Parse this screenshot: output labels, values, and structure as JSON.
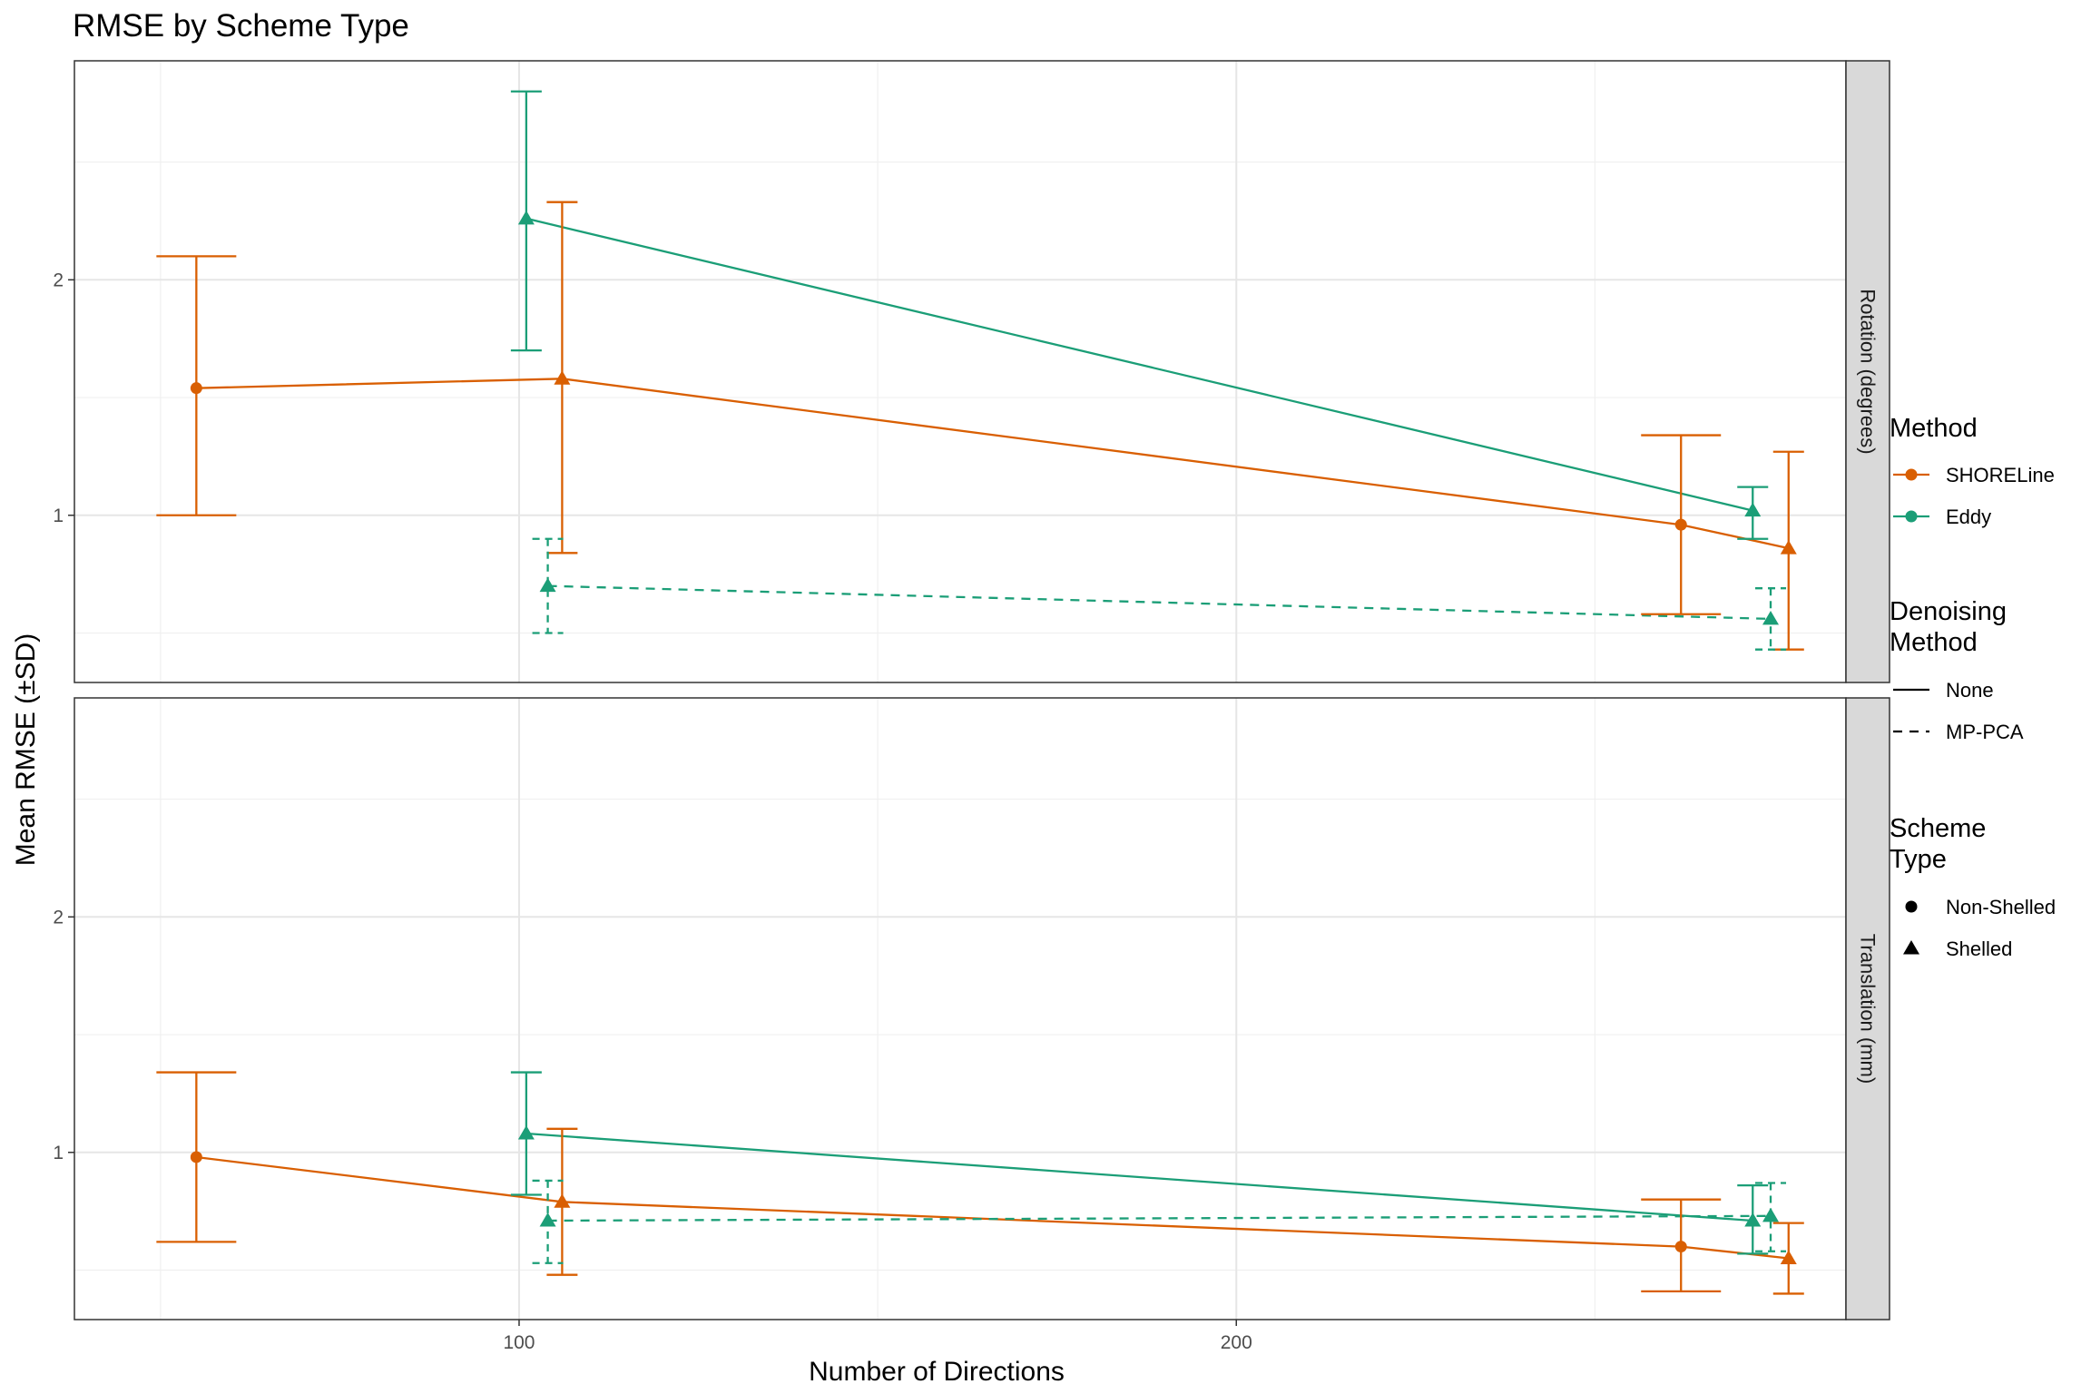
{
  "title": "RMSE by Scheme Type",
  "colors": {
    "SHORELine": "#D95F02",
    "Eddy": "#1B9E77"
  },
  "chart_data": {
    "type": "line",
    "title": "RMSE by Scheme Type",
    "xlabel": "Number of Directions",
    "ylabel": "Mean RMSE (±SD)",
    "x_ticks": [
      100,
      200
    ],
    "y_ticks": [
      1,
      2
    ],
    "xlim": [
      38,
      285
    ],
    "ylim": [
      0.29,
      2.93
    ],
    "grid": true,
    "legend_position": "right",
    "facets": [
      {
        "label": "Rotation (degrees)",
        "points": [
          {
            "method": "SHORELine",
            "denoising": "None",
            "scheme": "Non-Shelled",
            "x": 55,
            "mean": 1.54,
            "lo": 1.0,
            "hi": 2.1
          },
          {
            "method": "SHORELine",
            "denoising": "None",
            "scheme": "Shelled",
            "x": 106,
            "mean": 1.58,
            "lo": 0.84,
            "hi": 2.33
          },
          {
            "method": "SHORELine",
            "denoising": "None",
            "scheme": "Non-Shelled",
            "x": 262,
            "mean": 0.96,
            "lo": 0.58,
            "hi": 1.34
          },
          {
            "method": "SHORELine",
            "denoising": "None",
            "scheme": "Shelled",
            "x": 277,
            "mean": 0.86,
            "lo": 0.43,
            "hi": 1.27
          },
          {
            "method": "Eddy",
            "denoising": "None",
            "scheme": "Shelled",
            "x": 101,
            "mean": 2.26,
            "lo": 1.7,
            "hi": 2.8
          },
          {
            "method": "Eddy",
            "denoising": "None",
            "scheme": "Shelled",
            "x": 272,
            "mean": 1.02,
            "lo": 0.9,
            "hi": 1.12
          },
          {
            "method": "Eddy",
            "denoising": "MP-PCA",
            "scheme": "Shelled",
            "x": 104,
            "mean": 0.7,
            "lo": 0.5,
            "hi": 0.9
          },
          {
            "method": "Eddy",
            "denoising": "MP-PCA",
            "scheme": "Shelled",
            "x": 274.5,
            "mean": 0.56,
            "lo": 0.43,
            "hi": 0.69
          }
        ]
      },
      {
        "label": "Translation (mm)",
        "points": [
          {
            "method": "SHORELine",
            "denoising": "None",
            "scheme": "Non-Shelled",
            "x": 55,
            "mean": 0.98,
            "lo": 0.62,
            "hi": 1.34
          },
          {
            "method": "SHORELine",
            "denoising": "None",
            "scheme": "Shelled",
            "x": 106,
            "mean": 0.79,
            "lo": 0.48,
            "hi": 1.1
          },
          {
            "method": "SHORELine",
            "denoising": "None",
            "scheme": "Non-Shelled",
            "x": 262,
            "mean": 0.6,
            "lo": 0.41,
            "hi": 0.8
          },
          {
            "method": "SHORELine",
            "denoising": "None",
            "scheme": "Shelled",
            "x": 277,
            "mean": 0.55,
            "lo": 0.4,
            "hi": 0.7
          },
          {
            "method": "Eddy",
            "denoising": "None",
            "scheme": "Shelled",
            "x": 101,
            "mean": 1.08,
            "lo": 0.82,
            "hi": 1.34
          },
          {
            "method": "Eddy",
            "denoising": "None",
            "scheme": "Shelled",
            "x": 272,
            "mean": 0.71,
            "lo": 0.57,
            "hi": 0.86
          },
          {
            "method": "Eddy",
            "denoising": "MP-PCA",
            "scheme": "Shelled",
            "x": 104,
            "mean": 0.71,
            "lo": 0.53,
            "hi": 0.88
          },
          {
            "method": "Eddy",
            "denoising": "MP-PCA",
            "scheme": "Shelled",
            "x": 274.5,
            "mean": 0.73,
            "lo": 0.58,
            "hi": 0.87
          }
        ]
      }
    ],
    "legend": {
      "method_title": "Method",
      "methods": [
        "SHORELine",
        "Eddy"
      ],
      "denoising_title_lines": [
        "Denoising",
        "Method"
      ],
      "denoising": [
        "None",
        "MP-PCA"
      ],
      "scheme_title_lines": [
        "Scheme",
        "Type"
      ],
      "schemes": [
        "Non-Shelled",
        "Shelled"
      ]
    }
  }
}
